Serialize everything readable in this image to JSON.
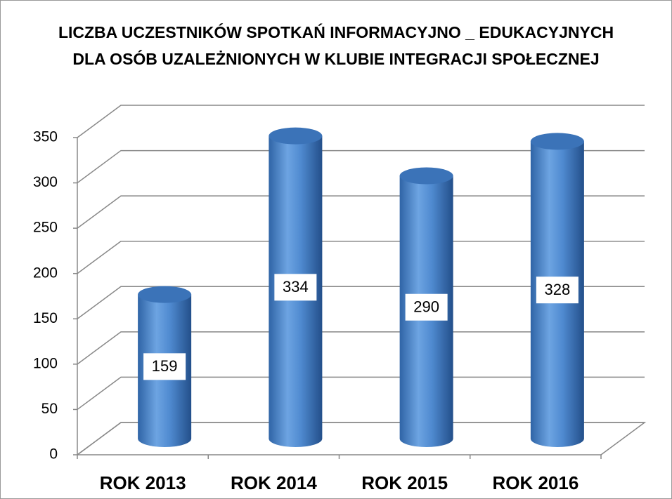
{
  "chart_data": {
    "type": "bar",
    "title": [
      "LICZBA UCZESTNIKÓW SPOTKAŃ INFORMACYJNO _ EDUKACYJNYCH",
      "DLA OSÓB UZALEŻNIONYCH W KLUBIE INTEGRACJI SPOŁECZNEJ"
    ],
    "categories": [
      "ROK 2013",
      "ROK 2014",
      "ROK 2015",
      "ROK 2016"
    ],
    "values": [
      159,
      334,
      290,
      328
    ],
    "color": "#4a86c8",
    "ylim": [
      0,
      350
    ],
    "yticks": [
      0,
      50,
      100,
      150,
      200,
      250,
      300,
      350
    ],
    "grid": true
  }
}
